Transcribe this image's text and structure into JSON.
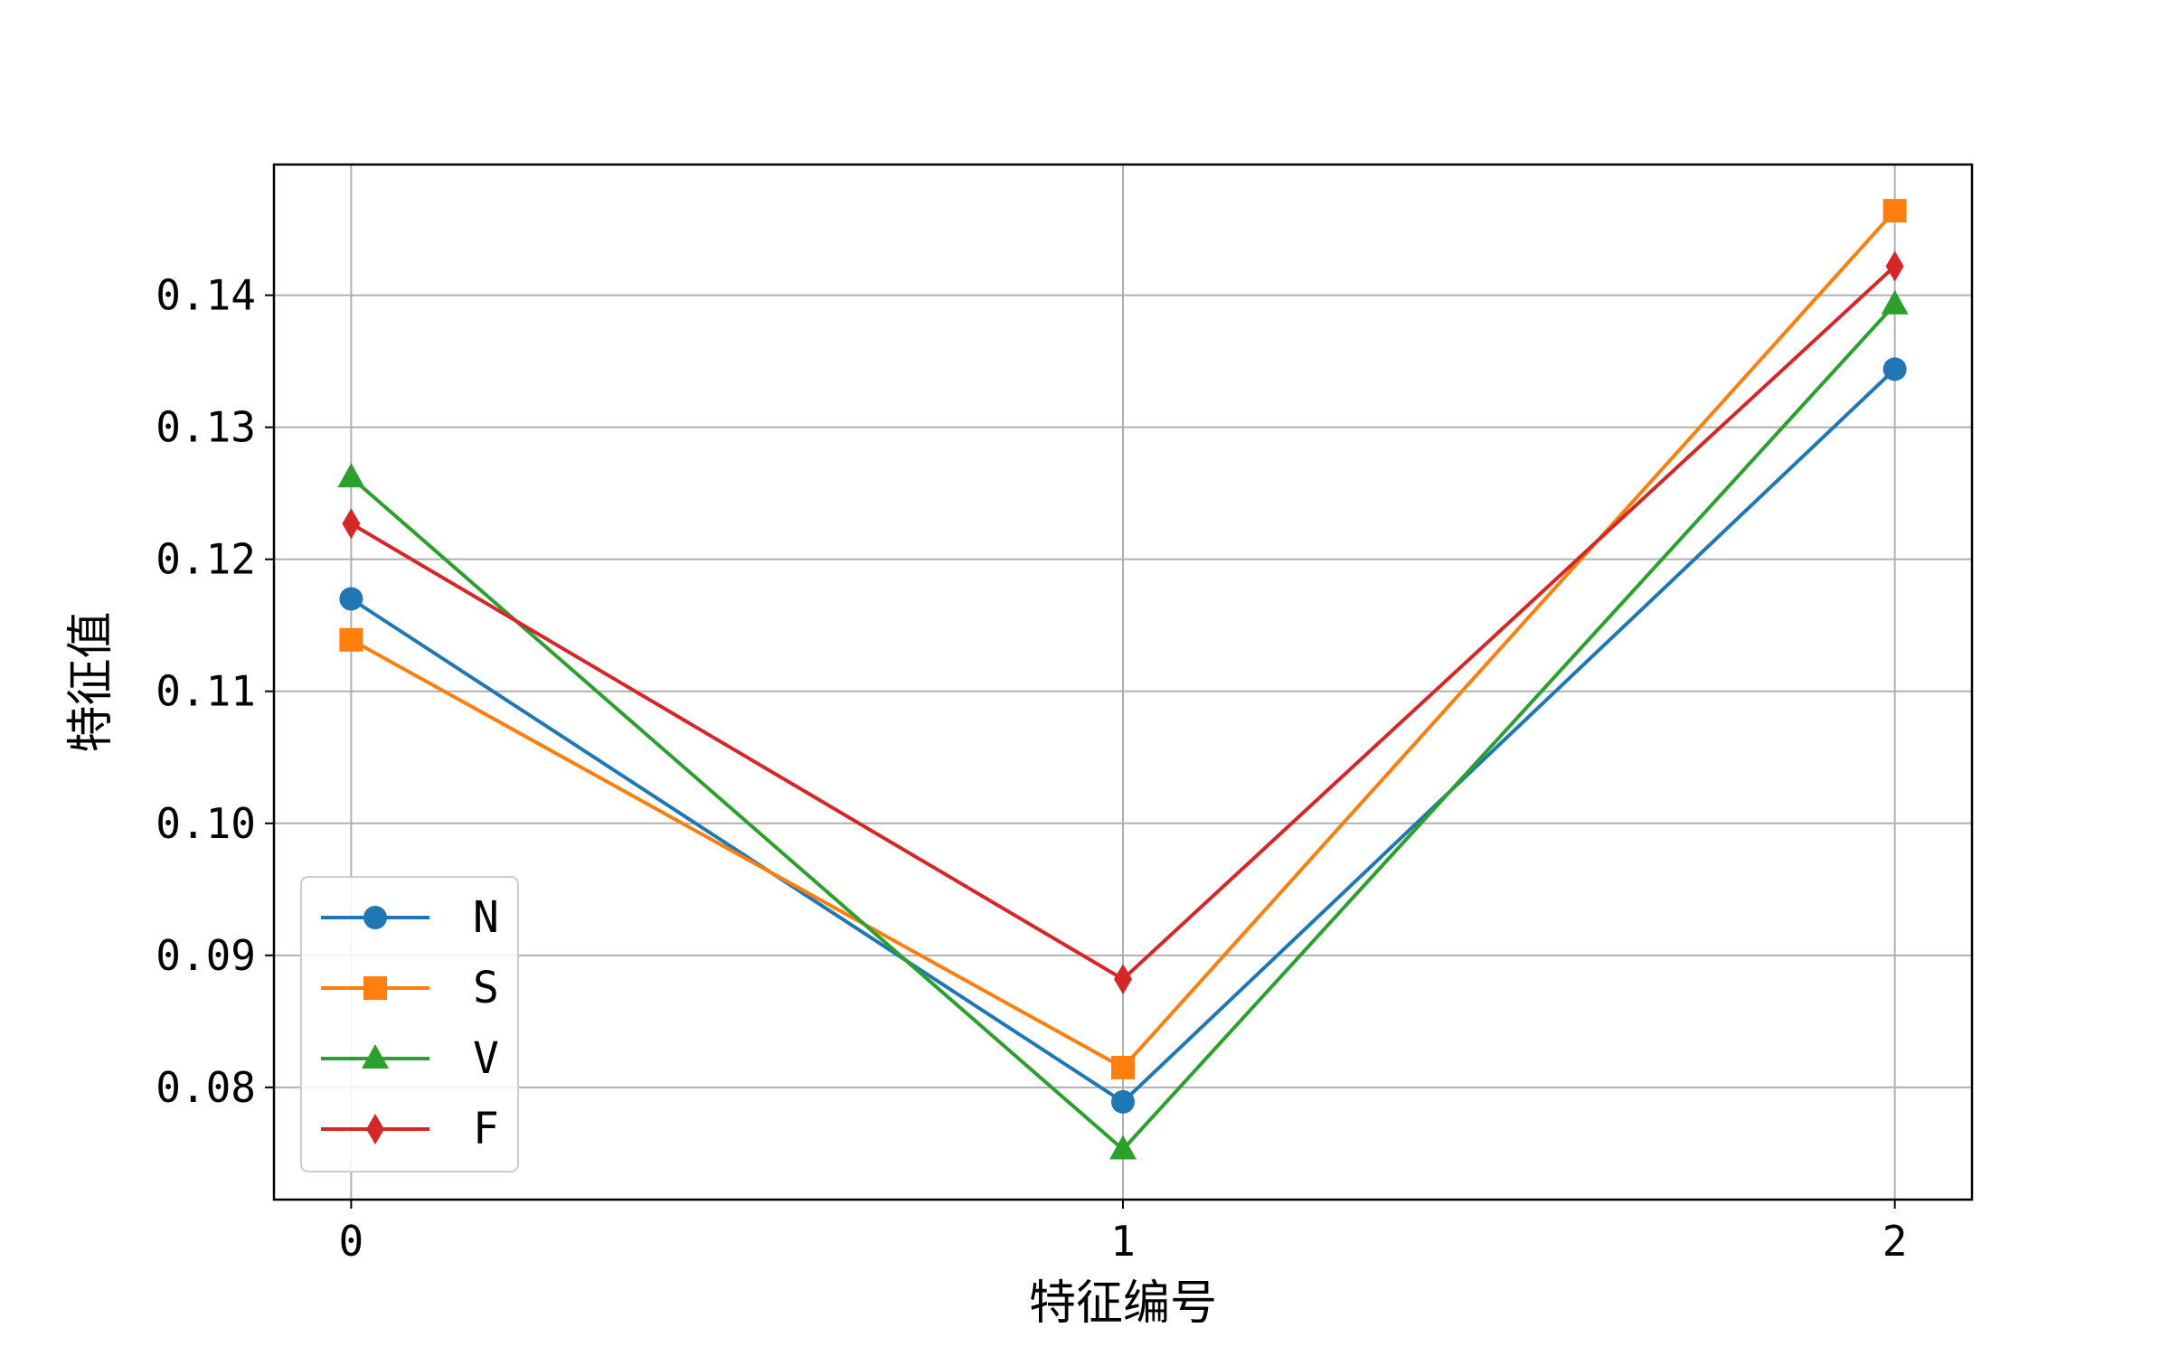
{
  "chart_data": {
    "type": "line",
    "title": "",
    "xlabel": "特征编号",
    "ylabel": "特征值",
    "x": [
      0,
      1,
      2
    ],
    "xticks": [
      "0",
      "1",
      "2"
    ],
    "xlim": [
      -0.1,
      2.1
    ],
    "ylim": [
      0.0715,
      0.1499
    ],
    "yticks": [
      "0.08",
      "0.09",
      "0.10",
      "0.11",
      "0.12",
      "0.13",
      "0.14"
    ],
    "ytick_values": [
      0.08,
      0.09,
      0.1,
      0.11,
      0.12,
      0.13,
      0.14
    ],
    "grid": true,
    "legend_position": "lower-left",
    "series": [
      {
        "name": "N",
        "values": [
          0.117,
          0.0789,
          0.1344
        ],
        "color": "#1f77b4",
        "marker": "circle"
      },
      {
        "name": "S",
        "values": [
          0.1139,
          0.0815,
          0.1464
        ],
        "color": "#ff7f0e",
        "marker": "square"
      },
      {
        "name": "V",
        "values": [
          0.1262,
          0.0753,
          0.1393
        ],
        "color": "#2ca02c",
        "marker": "triangle"
      },
      {
        "name": "F",
        "values": [
          0.1227,
          0.0882,
          0.1422
        ],
        "color": "#d62728",
        "marker": "diamond"
      }
    ]
  }
}
